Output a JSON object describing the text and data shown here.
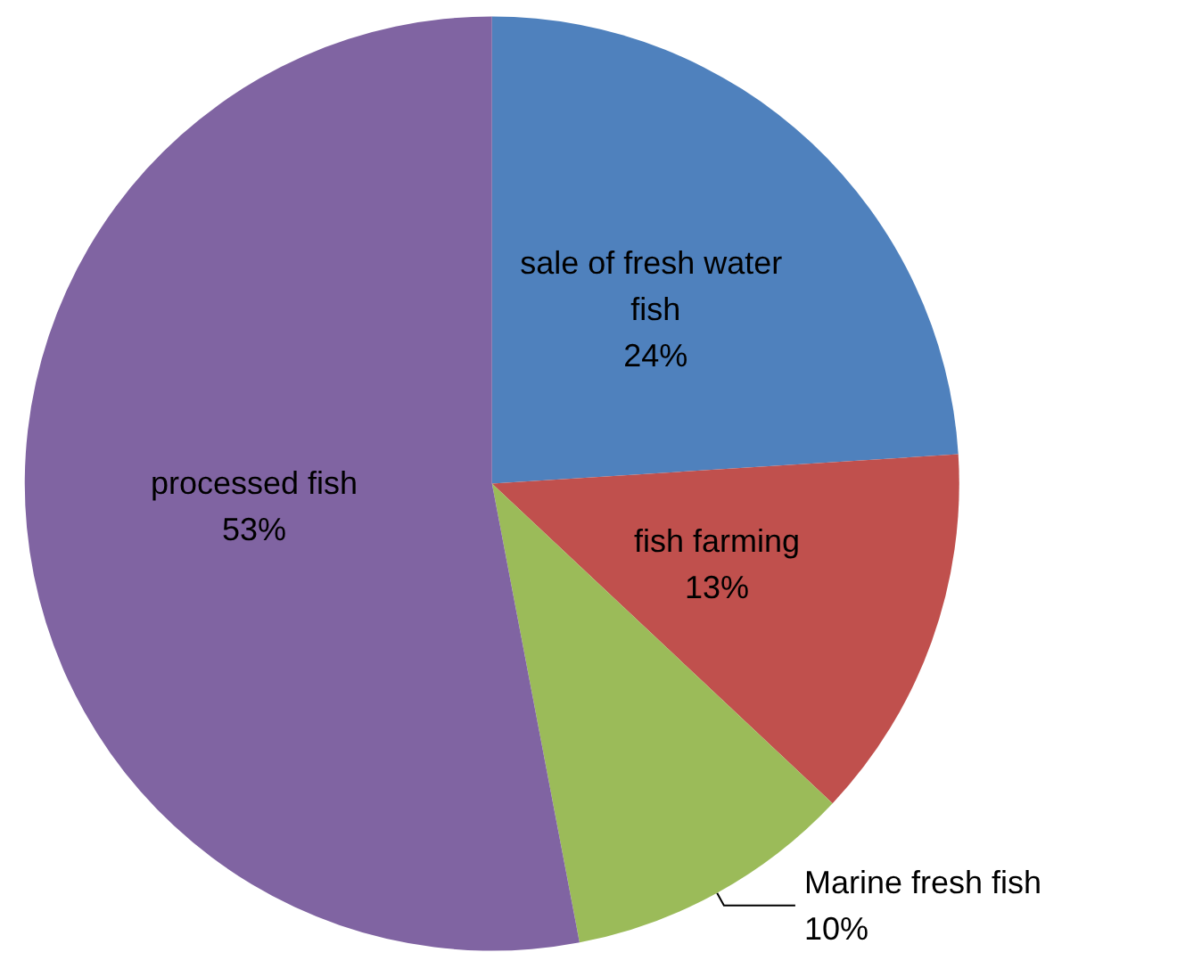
{
  "chart_data": {
    "type": "pie",
    "categories": [
      "sale of fresh water fish",
      "fish farming",
      "Marine fresh fish",
      "processed fish"
    ],
    "values": [
      24,
      13,
      10,
      53
    ],
    "value_labels": [
      "24%",
      "13%",
      "10%",
      "53%"
    ],
    "colors": [
      "#4f81bd",
      "#c0504d",
      "#9bbb59",
      "#8064a2"
    ],
    "legend": false
  }
}
